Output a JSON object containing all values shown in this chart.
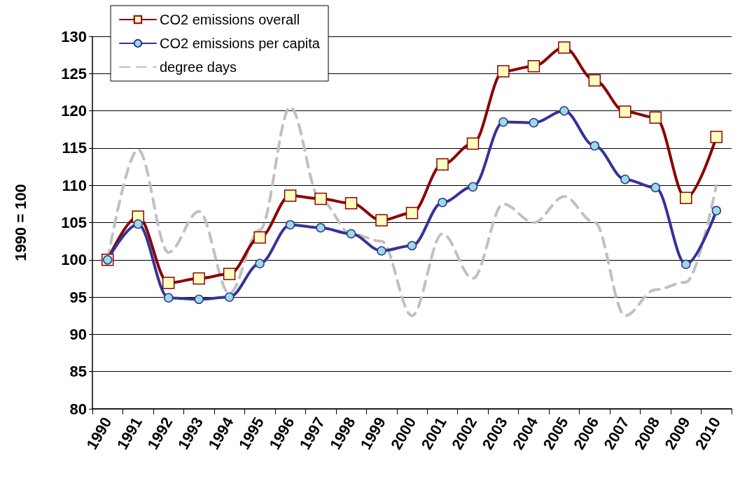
{
  "chart_data": {
    "type": "line",
    "ylabel": "1990 = 100",
    "categories": [
      "1990",
      "1991",
      "1992",
      "1993",
      "1994",
      "1995",
      "1996",
      "1997",
      "1998",
      "1999",
      "2000",
      "2001",
      "2002",
      "2003",
      "2004",
      "2005",
      "2006",
      "2007",
      "2008",
      "2009",
      "2010"
    ],
    "series": [
      {
        "name": "CO2 emissions overall",
        "color": "#8b0000",
        "marker": "square",
        "line_style": "solid",
        "values": [
          100,
          105.8,
          96.9,
          97.5,
          98.1,
          103,
          108.6,
          108.2,
          107.6,
          105.3,
          106.3,
          112.8,
          115.6,
          125.3,
          126,
          128.5,
          124.1,
          119.9,
          119.1,
          108.3,
          116.5
        ]
      },
      {
        "name": "CO2 emissions per capita",
        "color": "#333399",
        "marker": "circle",
        "line_style": "solid",
        "values": [
          100,
          104.8,
          94.9,
          94.7,
          95,
          99.5,
          104.7,
          104.3,
          103.5,
          101.2,
          101.9,
          107.7,
          109.8,
          118.5,
          118.4,
          120,
          115.3,
          110.8,
          109.7,
          99.4,
          106.6
        ]
      },
      {
        "name": "degree days",
        "color": "#c0c0c0",
        "marker": "none",
        "line_style": "dashed",
        "values": [
          100,
          114.8,
          101,
          106.5,
          95.5,
          104,
          120.5,
          108,
          103.5,
          102.5,
          92.5,
          103.5,
          97.5,
          107.5,
          105,
          108.5,
          105,
          92.5,
          96,
          97,
          110
        ]
      }
    ],
    "ylim": [
      80,
      130
    ],
    "yticks": [
      80,
      85,
      90,
      95,
      100,
      105,
      110,
      115,
      120,
      125,
      130
    ],
    "grid": "y",
    "legend": "top left"
  }
}
